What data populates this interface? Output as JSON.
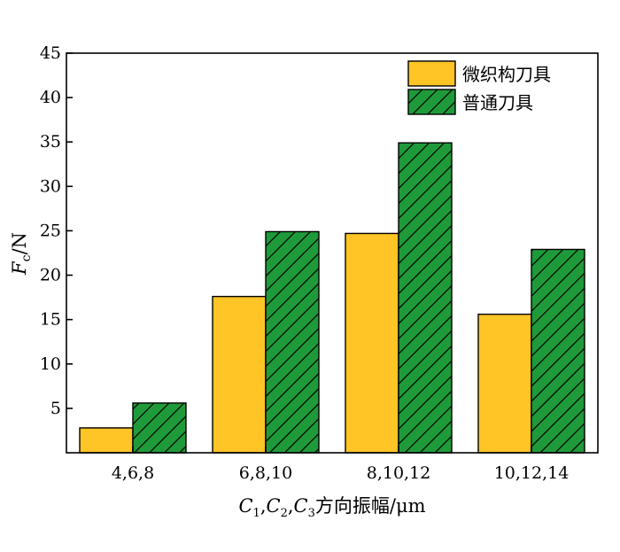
{
  "chart_data": {
    "type": "bar",
    "title": "",
    "categories": [
      "4,6,8",
      "6,8,10",
      "8,10,12",
      "10,12,14"
    ],
    "series": [
      {
        "name": "微织构刀具",
        "values": [
          2.8,
          17.6,
          24.7,
          15.6
        ],
        "color": "#FFC425",
        "pattern": "solid"
      },
      {
        "name": "普通刀具",
        "values": [
          5.6,
          24.9,
          34.9,
          22.9
        ],
        "color": "#1F9A3A",
        "pattern": "diagonal-hatch"
      }
    ],
    "ylim": [
      0,
      45
    ],
    "yticks": [
      5,
      10,
      15,
      20,
      25,
      30,
      35,
      40,
      45
    ],
    "ylabel": {
      "symbol": "F",
      "subscript": "c",
      "unit": "/N"
    },
    "xlabel": {
      "c1": "C",
      "c1_sub": "1",
      "sep1": ",",
      "c2": "C",
      "c2_sub": "2",
      "sep2": ",",
      "c3": "C",
      "c3_sub": "3",
      "rest": "方向振幅/μm"
    },
    "legend_position": "top-right",
    "grid": false
  }
}
